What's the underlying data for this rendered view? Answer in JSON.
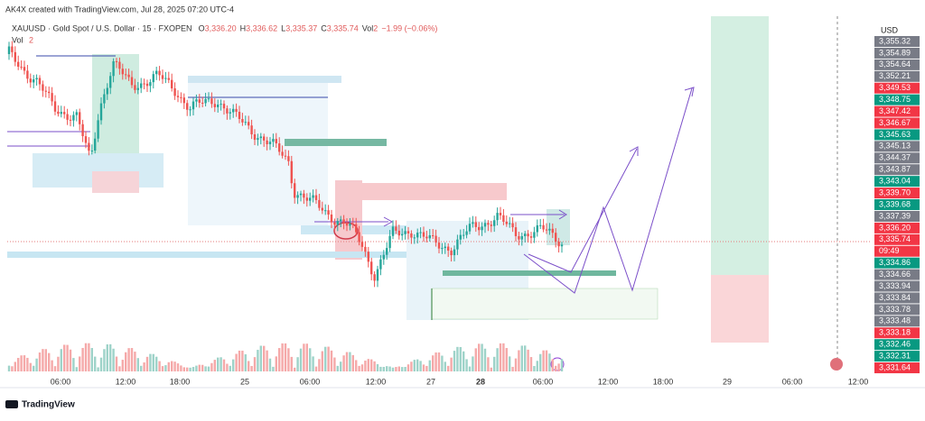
{
  "header": {
    "attribution": "AK4X created with TradingView.com, Jul 28, 2025 07:20 UTC-4"
  },
  "symbol": {
    "name": "XAUUSD · Gold Spot / U.S. Dollar · 15 · FXOPEN",
    "ohlc": [
      {
        "label": "O",
        "value": "3,336.20"
      },
      {
        "label": "H",
        "value": "3,336.62"
      },
      {
        "label": "L",
        "value": "3,335.37"
      },
      {
        "label": "C",
        "value": "3,335.74"
      },
      {
        "label": "Vol",
        "value": "2"
      }
    ],
    "change": "−1.99 (−0.06%)"
  },
  "volume_legend": {
    "label": "Vol",
    "value": "2"
  },
  "price_scale": {
    "currency": "USD",
    "labels": [
      {
        "text": "3,355.32",
        "kind": "plain"
      },
      {
        "text": "3,354.89",
        "kind": "plain"
      },
      {
        "text": "3,354.64",
        "kind": "plain"
      },
      {
        "text": "3,352.21",
        "kind": "plain"
      },
      {
        "text": "3,349.53",
        "kind": "red"
      },
      {
        "text": "3,348.75",
        "kind": "green"
      },
      {
        "text": "3,347.42",
        "kind": "red"
      },
      {
        "text": "3,346.67",
        "kind": "red"
      },
      {
        "text": "3,345.63",
        "kind": "green"
      },
      {
        "text": "3,345.13",
        "kind": "plain"
      },
      {
        "text": "3,344.37",
        "kind": "plain"
      },
      {
        "text": "3,343.87",
        "kind": "plain"
      },
      {
        "text": "3,343.04",
        "kind": "green"
      },
      {
        "text": "3,339.70",
        "kind": "red"
      },
      {
        "text": "3,339.68",
        "kind": "green"
      },
      {
        "text": "3,337.39",
        "kind": "plain"
      },
      {
        "text": "3,336.20",
        "kind": "red"
      },
      {
        "text": "3,335.74",
        "kind": "red"
      },
      {
        "text": "09:49",
        "kind": "red"
      },
      {
        "text": "3,334.86",
        "kind": "green"
      },
      {
        "text": "3,334.66",
        "kind": "plain"
      },
      {
        "text": "3,333.94",
        "kind": "plain"
      },
      {
        "text": "3,333.84",
        "kind": "plain"
      },
      {
        "text": "3,333.78",
        "kind": "plain"
      },
      {
        "text": "3,333.48",
        "kind": "plain"
      },
      {
        "text": "3,333.18",
        "kind": "red"
      },
      {
        "text": "3,332.46",
        "kind": "green"
      },
      {
        "text": "3,332.31",
        "kind": "green"
      },
      {
        "text": "3,331.64",
        "kind": "red"
      }
    ]
  },
  "time_scale": {
    "labels": [
      {
        "text": "06:00",
        "bold": false
      },
      {
        "text": "12:00",
        "bold": false
      },
      {
        "text": "18:00",
        "bold": false
      },
      {
        "text": "25",
        "bold": false
      },
      {
        "text": "06:00",
        "bold": false
      },
      {
        "text": "12:00",
        "bold": false
      },
      {
        "text": "27",
        "bold": false
      },
      {
        "text": "28",
        "bold": true
      },
      {
        "text": "06:00",
        "bold": false
      },
      {
        "text": "12:00",
        "bold": false
      },
      {
        "text": "18:00",
        "bold": false
      },
      {
        "text": "29",
        "bold": false
      },
      {
        "text": "06:00",
        "bold": false
      },
      {
        "text": "12:00",
        "bold": false
      }
    ]
  },
  "footer": {
    "brand": "TradingView"
  }
}
